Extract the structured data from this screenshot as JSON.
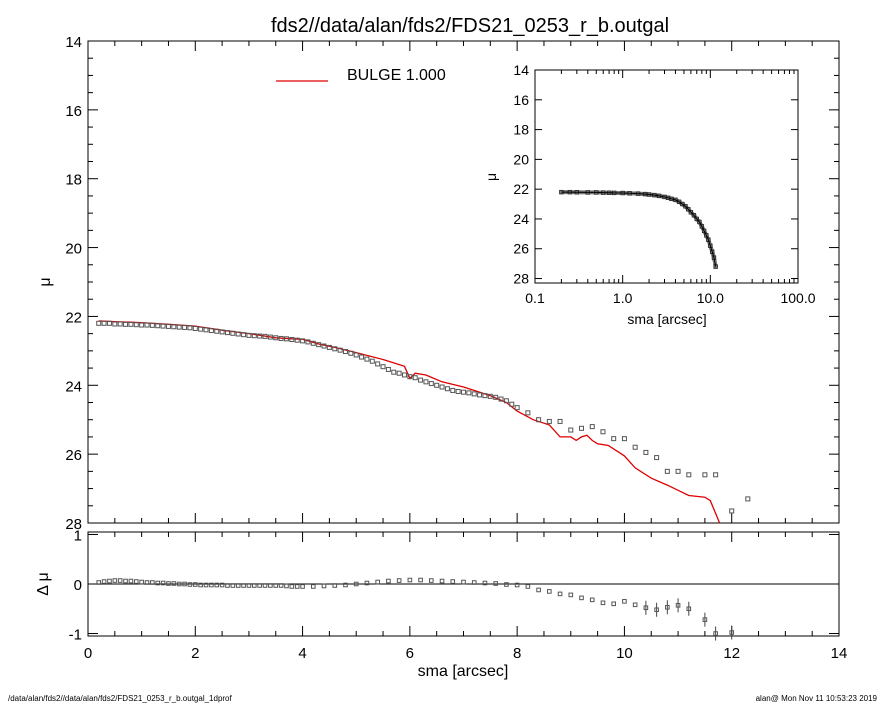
{
  "title": "fds2//data/alan/fds2/FDS21_0253_r_b.outgal",
  "footer": {
    "left": "/data/alan/fds2//data/alan/fds2/FDS21_0253_r_b.outgal_1dprof",
    "right": "alan@  Mon Nov 11 10:53:23 2019"
  },
  "legend": {
    "label": "BULGE  1.000",
    "color": "#dd0000"
  },
  "colors": {
    "model": "#dd0000",
    "points": "#000000",
    "zero_line": "#000000"
  },
  "chart_data": [
    {
      "id": "main",
      "type": "scatter",
      "xlim": [
        0,
        14
      ],
      "ylim": [
        28,
        14
      ],
      "ylabel": "μ",
      "xticks": [
        0,
        2,
        4,
        6,
        8,
        10,
        12,
        14
      ],
      "yticks": [
        14,
        16,
        18,
        20,
        22,
        24,
        26,
        28
      ],
      "series": [
        {
          "kind": "observed",
          "x": [
            0.2,
            0.3,
            0.4,
            0.5,
            0.6,
            0.7,
            0.8,
            0.9,
            1.0,
            1.1,
            1.2,
            1.3,
            1.4,
            1.5,
            1.6,
            1.7,
            1.8,
            1.9,
            2.0,
            2.1,
            2.2,
            2.3,
            2.4,
            2.5,
            2.6,
            2.7,
            2.8,
            2.9,
            3.0,
            3.1,
            3.2,
            3.3,
            3.4,
            3.5,
            3.6,
            3.7,
            3.8,
            3.9,
            4.0,
            4.1,
            4.2,
            4.3,
            4.4,
            4.5,
            4.6,
            4.7,
            4.8,
            4.9,
            5.0,
            5.1,
            5.2,
            5.3,
            5.4,
            5.5,
            5.6,
            5.7,
            5.8,
            5.9,
            6.0,
            6.1,
            6.2,
            6.3,
            6.4,
            6.5,
            6.6,
            6.7,
            6.8,
            6.9,
            7.0,
            7.1,
            7.2,
            7.3,
            7.4,
            7.5,
            7.6,
            7.7,
            7.8,
            7.9,
            8.0,
            8.2,
            8.4,
            8.6,
            8.8,
            9.0,
            9.2,
            9.4,
            9.6,
            9.8,
            10.0,
            10.2,
            10.4,
            10.6,
            10.8,
            11.0,
            11.2,
            11.5,
            11.7,
            12.0,
            12.3
          ],
          "y": [
            22.2,
            22.2,
            22.2,
            22.22,
            22.22,
            22.23,
            22.23,
            22.24,
            22.25,
            22.25,
            22.26,
            22.27,
            22.28,
            22.29,
            22.3,
            22.31,
            22.32,
            22.33,
            22.35,
            22.37,
            22.39,
            22.41,
            22.43,
            22.45,
            22.47,
            22.49,
            22.51,
            22.53,
            22.55,
            22.56,
            22.57,
            22.58,
            22.6,
            22.62,
            22.64,
            22.65,
            22.67,
            22.69,
            22.71,
            22.74,
            22.78,
            22.82,
            22.86,
            22.9,
            22.94,
            22.98,
            23.02,
            23.07,
            23.12,
            23.18,
            23.24,
            23.3,
            23.38,
            23.46,
            23.54,
            23.62,
            23.65,
            23.7,
            23.75,
            23.78,
            23.85,
            23.9,
            23.95,
            24.0,
            24.05,
            24.1,
            24.15,
            24.18,
            24.2,
            24.22,
            24.25,
            24.28,
            24.3,
            24.32,
            24.35,
            24.4,
            24.45,
            24.55,
            24.65,
            24.8,
            25.0,
            25.05,
            25.05,
            25.3,
            25.25,
            25.2,
            25.35,
            25.55,
            25.55,
            25.8,
            25.95,
            26.1,
            26.5,
            26.5,
            26.6,
            26.6,
            26.6,
            27.65,
            27.3
          ]
        },
        {
          "kind": "model",
          "name": "BULGE  1.000",
          "x": [
            0.2,
            0.5,
            1.0,
            1.5,
            2.0,
            2.5,
            3.0,
            3.5,
            3.8,
            4.0,
            4.3,
            4.6,
            5.0,
            5.5,
            5.9,
            6.0,
            6.1,
            6.3,
            6.6,
            7.0,
            7.5,
            7.8,
            8.0,
            8.3,
            8.6,
            8.8,
            9.0,
            9.1,
            9.2,
            9.3,
            9.4,
            9.5,
            9.7,
            9.9,
            10.0,
            10.2,
            10.5,
            10.8,
            11.0,
            11.2,
            11.5,
            11.6,
            11.8
          ],
          "y": [
            22.13,
            22.15,
            22.18,
            22.23,
            22.28,
            22.4,
            22.5,
            22.62,
            22.65,
            22.66,
            22.8,
            22.9,
            23.05,
            23.25,
            23.45,
            23.8,
            23.65,
            23.7,
            23.9,
            24.05,
            24.3,
            24.5,
            24.75,
            25.0,
            25.15,
            25.5,
            25.5,
            25.6,
            25.5,
            25.45,
            25.6,
            25.7,
            25.75,
            25.95,
            26.05,
            26.4,
            26.7,
            26.9,
            27.05,
            27.2,
            27.25,
            27.35,
            28.1
          ]
        }
      ]
    },
    {
      "id": "residual",
      "type": "scatter",
      "xlabel": "sma [arcsec]",
      "ylabel": "Δ μ",
      "xlim": [
        0,
        14
      ],
      "ylim": [
        -1.05,
        1.05
      ],
      "xticks": [
        0,
        2,
        4,
        6,
        8,
        10,
        12,
        14
      ],
      "yticks": [
        1,
        0,
        -1
      ],
      "reference_line": 0,
      "x": [
        0.2,
        0.3,
        0.4,
        0.5,
        0.6,
        0.7,
        0.8,
        0.9,
        1.0,
        1.1,
        1.2,
        1.3,
        1.4,
        1.5,
        1.6,
        1.7,
        1.8,
        1.9,
        2.0,
        2.1,
        2.2,
        2.3,
        2.4,
        2.5,
        2.6,
        2.7,
        2.8,
        2.9,
        3.0,
        3.1,
        3.2,
        3.3,
        3.4,
        3.5,
        3.6,
        3.7,
        3.8,
        3.9,
        4.0,
        4.2,
        4.4,
        4.6,
        4.8,
        5.0,
        5.2,
        5.4,
        5.6,
        5.8,
        6.0,
        6.2,
        6.4,
        6.6,
        6.8,
        7.0,
        7.2,
        7.4,
        7.6,
        7.8,
        8.0,
        8.2,
        8.4,
        8.6,
        8.8,
        9.0,
        9.2,
        9.4,
        9.6,
        9.8,
        10.0,
        10.2,
        10.4,
        10.6,
        10.8,
        11.0,
        11.2,
        11.5,
        11.7,
        12.0
      ],
      "y": [
        0.03,
        0.05,
        0.06,
        0.07,
        0.07,
        0.06,
        0.06,
        0.05,
        0.04,
        0.03,
        0.03,
        0.02,
        0.02,
        0.01,
        0.01,
        0.0,
        0.0,
        -0.01,
        -0.01,
        -0.02,
        -0.02,
        -0.02,
        -0.02,
        -0.02,
        -0.03,
        -0.03,
        -0.03,
        -0.03,
        -0.03,
        -0.03,
        -0.03,
        -0.03,
        -0.03,
        -0.03,
        -0.03,
        -0.04,
        -0.05,
        -0.05,
        -0.05,
        -0.05,
        -0.04,
        -0.03,
        -0.02,
        0.0,
        0.02,
        0.04,
        0.06,
        0.07,
        0.08,
        0.08,
        0.07,
        0.06,
        0.05,
        0.04,
        0.03,
        0.02,
        0.01,
        -0.01,
        -0.02,
        -0.05,
        -0.12,
        -0.15,
        -0.2,
        -0.22,
        -0.28,
        -0.32,
        -0.38,
        -0.4,
        -0.35,
        -0.42,
        -0.48,
        -0.52,
        -0.47,
        -0.43,
        -0.5,
        -0.72,
        -1.0,
        -0.98
      ]
    },
    {
      "id": "inset",
      "type": "scatter",
      "xlabel": "sma [arcsec]",
      "ylabel": "μ",
      "xscale": "log",
      "xlim": [
        0.1,
        100
      ],
      "ylim": [
        28.3,
        14
      ],
      "xtick_values": [
        0.1,
        1,
        10,
        100
      ],
      "xtick_labels": [
        "0.1",
        "1.0",
        "10.0",
        "100.0"
      ],
      "yticks": [
        14,
        16,
        18,
        20,
        22,
        24,
        26,
        28
      ],
      "x": [
        0.2,
        0.25,
        0.3,
        0.4,
        0.5,
        0.6,
        0.7,
        0.8,
        1.0,
        1.2,
        1.5,
        1.8,
        2.0,
        2.3,
        2.6,
        3.0,
        3.3,
        3.6,
        4.0,
        4.4,
        4.8,
        5.2,
        5.6,
        6.0,
        6.5,
        7.0,
        7.5,
        8.0,
        8.5,
        9.0,
        9.5,
        10.0,
        10.5,
        11.0,
        11.5
      ],
      "y": [
        22.2,
        22.2,
        22.21,
        22.22,
        22.22,
        22.23,
        22.24,
        22.25,
        22.26,
        22.28,
        22.3,
        22.33,
        22.36,
        22.4,
        22.45,
        22.52,
        22.58,
        22.65,
        22.72,
        22.85,
        23.0,
        23.15,
        23.35,
        23.55,
        23.75,
        24.0,
        24.2,
        24.5,
        24.8,
        25.1,
        25.4,
        25.8,
        26.2,
        26.6,
        27.2
      ]
    }
  ]
}
